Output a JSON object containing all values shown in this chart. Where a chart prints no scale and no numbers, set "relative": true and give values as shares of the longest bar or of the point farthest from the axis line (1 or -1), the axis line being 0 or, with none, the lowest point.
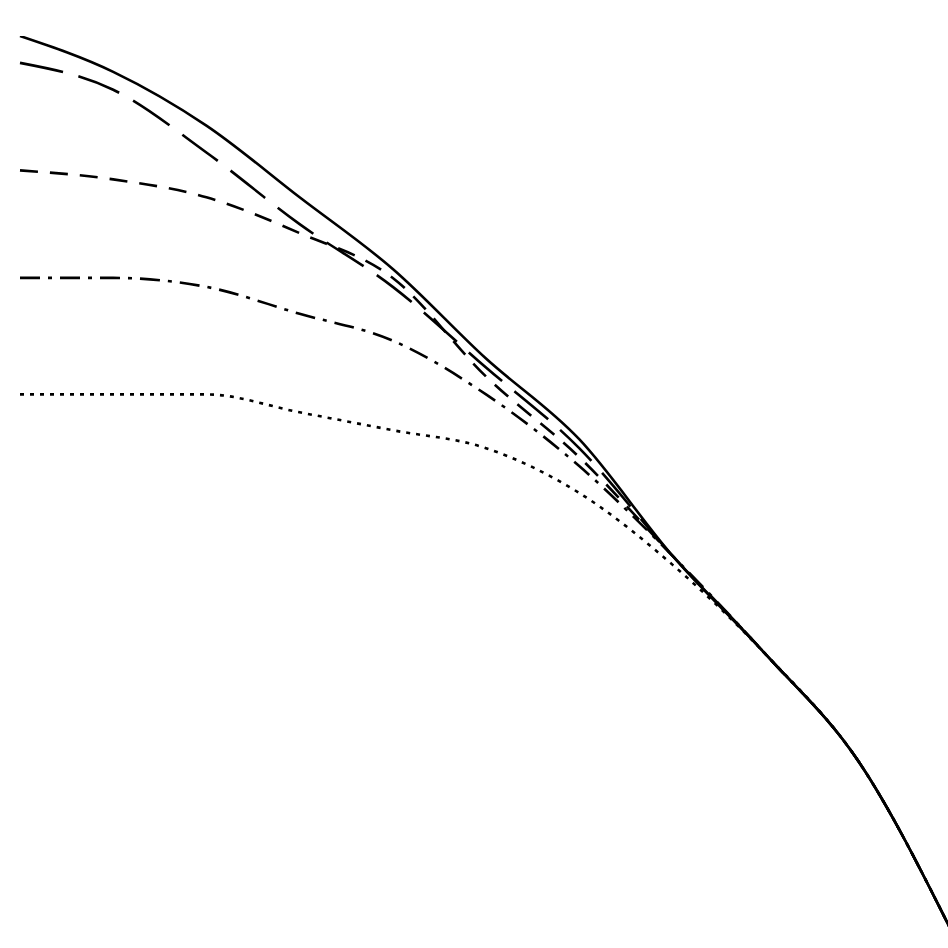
{
  "chart_data": {
    "type": "line",
    "relative": true,
    "marker": "none",
    "categories": [
      null,
      null,
      null,
      null,
      null,
      null,
      null,
      null,
      null,
      null,
      null
    ],
    "series": [
      {
        "color": "#000000",
        "line_style": "solid",
        "values": [
          1.0,
          0.96,
          0.9,
          0.82,
          0.74,
          0.64,
          0.55,
          0.42,
          0.31,
          0.19,
          0
        ]
      },
      {
        "color": "#000000",
        "line_style": "longdash",
        "values": [
          0.97,
          0.94,
          0.87,
          0.79,
          0.72,
          0.63,
          0.54,
          0.42,
          0.31,
          0.19,
          0
        ]
      },
      {
        "color": "#000000",
        "line_style": "dashed",
        "values": [
          0.85,
          0.84,
          0.82,
          0.78,
          0.73,
          0.62,
          0.53,
          0.42,
          0.31,
          0.19,
          0
        ]
      },
      {
        "color": "#000000",
        "line_style": "dashdot",
        "values": [
          0.73,
          0.73,
          0.72,
          0.69,
          0.66,
          0.6,
          0.52,
          0.42,
          0.31,
          0.19,
          0
        ]
      },
      {
        "color": "#000000",
        "line_style": "dotted",
        "values": [
          0.6,
          0.6,
          0.6,
          0.58,
          0.56,
          0.54,
          0.49,
          0.41,
          0.31,
          0.19,
          0
        ]
      }
    ]
  }
}
